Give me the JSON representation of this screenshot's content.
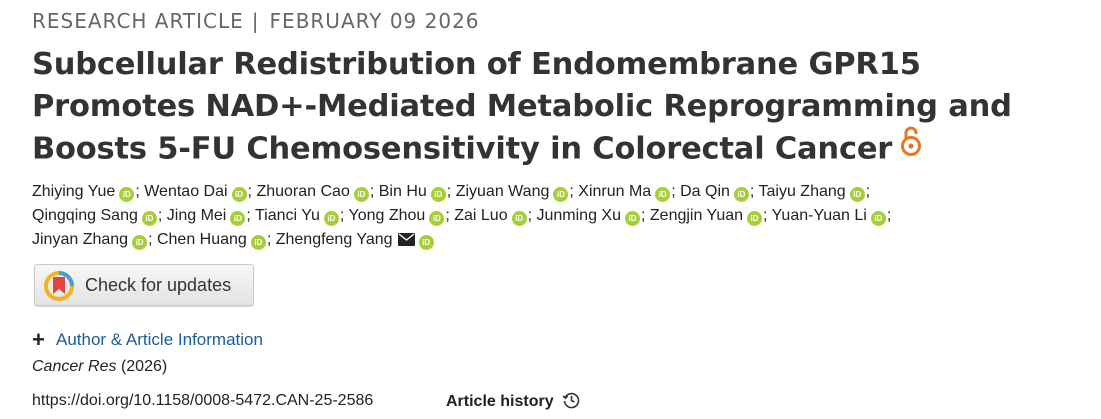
{
  "header": {
    "article_type": "RESEARCH ARTICLE",
    "separator": "|",
    "date": "FEBRUARY 09 2026"
  },
  "title": {
    "line1": "Subcellular Redistribution of Endomembrane GPR15",
    "line2": "Promotes NAD+-Mediated Metabolic Reprogramming and",
    "line3": "Boosts 5-FU Chemosensitivity in Colorectal Cancer",
    "open_access_icon": "open-lock-icon",
    "open_access_color": "#e87722"
  },
  "authors": {
    "orcid_badge": "iD",
    "orcid_color": "#a6ce39",
    "separator": ";",
    "rows": [
      [
        "Zhiying Yue",
        "Wentao Dai",
        "Zhuoran Cao",
        "Bin Hu",
        "Ziyuan Wang",
        "Xinrun Ma",
        "Da Qin",
        "Taiyu Zhang"
      ],
      [
        "Qingqing Sang",
        "Jing Mei",
        "Tianci Yu",
        "Yong Zhou",
        "Zai Luo",
        "Junming Xu",
        "Zengjin Yuan",
        "Yuan-Yuan Li"
      ],
      [
        "Jinyan Zhang",
        "Chen Huang",
        "Zhengfeng Yang"
      ]
    ]
  },
  "updates_button": {
    "label": "Check for updates",
    "icon": "crossmark-icon"
  },
  "author_info": {
    "plus": "+",
    "label": "Author & Article Information",
    "link_color": "#1a5c9b"
  },
  "citation": {
    "journal": "Cancer Res",
    "year": "(2026)",
    "doi": "https://doi.org/10.1158/0008-5472.CAN-25-2586",
    "history_label": "Article history",
    "history_icon": "history-clock-icon"
  }
}
